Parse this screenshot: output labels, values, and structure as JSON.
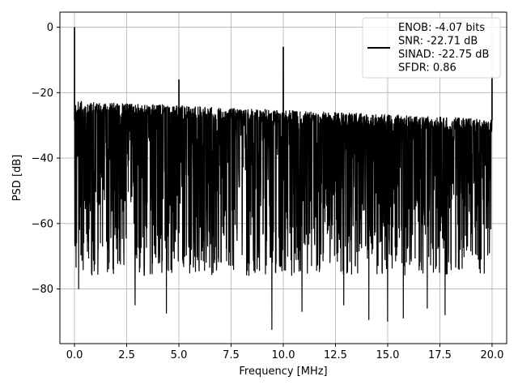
{
  "chart_data": {
    "type": "line",
    "title": "",
    "xlabel": "Frequency [MHz]",
    "ylabel": "PSD [dB]",
    "xlim": [
      -0.7,
      20.7
    ],
    "ylim": [
      -96.7,
      4.6
    ],
    "xticks": [
      0.0,
      2.5,
      5.0,
      7.5,
      10.0,
      12.5,
      15.0,
      17.5,
      20.0
    ],
    "xtick_labels": [
      "0.0",
      "2.5",
      "5.0",
      "7.5",
      "10.0",
      "12.5",
      "15.0",
      "17.5",
      "20.0"
    ],
    "yticks": [
      0,
      -20,
      -40,
      -60,
      -80
    ],
    "ytick_labels": [
      "0",
      "−20",
      "−40",
      "−60",
      "−80"
    ],
    "grid": true,
    "legend_position": "upper-right",
    "legend_lines": [
      "ENOB: -4.07 bits",
      "SNR: -22.71 dB",
      "SINAD: -22.75 dB",
      "SFDR: 0.86"
    ],
    "series_color": "#000000",
    "noise_floor": {
      "upper_envelope_at_0MHz": -22.5,
      "upper_envelope_at_20MHz": -28.0,
      "typical_min": -68,
      "deepest_dips": [
        {
          "x": 9.45,
          "y": -92.5
        },
        {
          "x": 15.0,
          "y": -90.0
        },
        {
          "x": 14.1,
          "y": -89.5
        },
        {
          "x": 15.75,
          "y": -89.0
        },
        {
          "x": 4.4,
          "y": -87.5
        },
        {
          "x": 17.75,
          "y": -88.0
        },
        {
          "x": 10.9,
          "y": -87.0
        },
        {
          "x": 2.9,
          "y": -85.0
        },
        {
          "x": 16.9,
          "y": -86.0
        },
        {
          "x": 12.9,
          "y": -85.0
        },
        {
          "x": 0.2,
          "y": -80.0
        }
      ]
    },
    "spurs": [
      {
        "x": 0.0,
        "y": 0.0
      },
      {
        "x": 5.0,
        "y": -16.0
      },
      {
        "x": 10.0,
        "y": -6.0
      },
      {
        "x": 20.0,
        "y": -15.0
      }
    ]
  }
}
